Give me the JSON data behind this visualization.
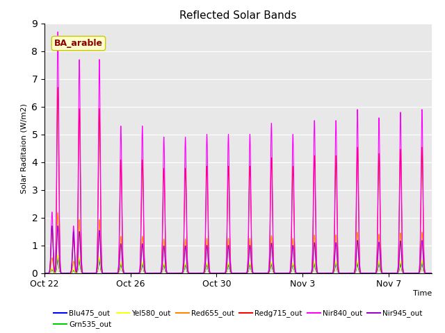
{
  "title": "Reflected Solar Bands",
  "xlabel": "Time",
  "ylabel": "Solar Raditaion (W/m2)",
  "annotation": "BA_arable",
  "ylim": [
    0,
    9.0
  ],
  "yticks": [
    0.0,
    1.0,
    2.0,
    3.0,
    4.0,
    5.0,
    6.0,
    7.0,
    8.0,
    9.0
  ],
  "bg_color": "#e8e8e8",
  "series": [
    {
      "name": "Blu475_out",
      "color": "#0000ff"
    },
    {
      "name": "Grn535_out",
      "color": "#00cc00"
    },
    {
      "name": "Yel580_out",
      "color": "#ffff00"
    },
    {
      "name": "Red655_out",
      "color": "#ff8800"
    },
    {
      "name": "Redg715_out",
      "color": "#ff0000"
    },
    {
      "name": "Nir840_out",
      "color": "#ff00ff"
    },
    {
      "name": "Nir945_out",
      "color": "#9900cc"
    }
  ],
  "xtick_labels": [
    "Oct 22",
    "Oct 26",
    "Oct 30",
    "Nov 3",
    "Nov 7"
  ],
  "xtick_positions": [
    0,
    4,
    8,
    12,
    16
  ],
  "figsize": [
    6.4,
    4.8
  ],
  "dpi": 100
}
